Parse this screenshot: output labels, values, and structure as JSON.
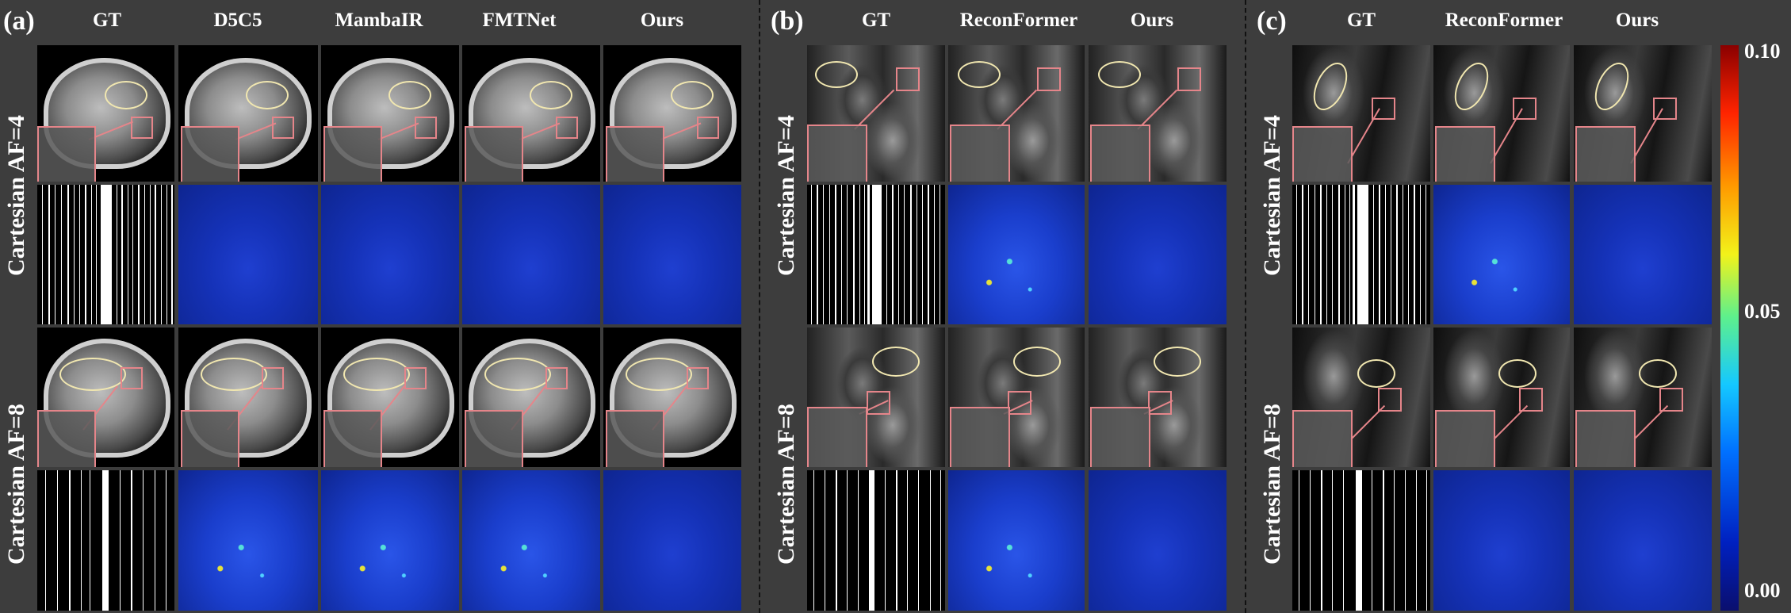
{
  "panels": {
    "a": {
      "label": "(a)",
      "columns": [
        "GT",
        "D5C5",
        "MambaIR",
        "FMTNet",
        "Ours"
      ]
    },
    "b": {
      "label": "(b)",
      "columns": [
        "GT",
        "ReconFormer",
        "Ours"
      ]
    },
    "c": {
      "label": "(c)",
      "columns": [
        "GT",
        "ReconFormer",
        "Ours"
      ]
    }
  },
  "row_labels": {
    "af4": "Cartesian  AF=4",
    "af8": "Cartesian  AF=8"
  },
  "colorbar": {
    "ticks": [
      "0.10",
      "0.05",
      "0.00"
    ],
    "colors": [
      "#0a0f6e",
      "#0070ff",
      "#5ef08c",
      "#f2f21a",
      "#ff2400",
      "#8a0000"
    ]
  },
  "accent_colors": {
    "roi_box": "#e5858a",
    "roi_ellipse": "#f1e7b0",
    "divider": "#111111"
  }
}
